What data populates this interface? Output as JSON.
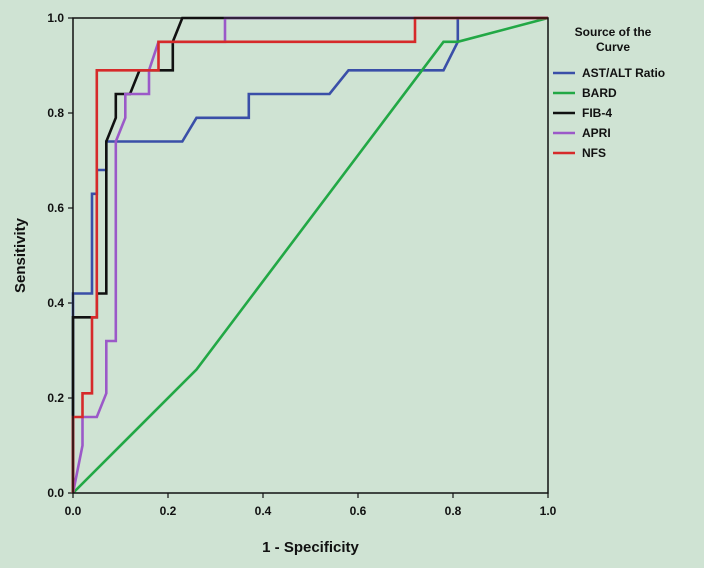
{
  "chart_data": {
    "type": "line",
    "title": "",
    "xlabel": "1 - Specificity",
    "ylabel": "Sensitivity",
    "xlim": [
      0,
      1
    ],
    "ylim": [
      0,
      1
    ],
    "xticks": [
      "0.0",
      "0.2",
      "0.4",
      "0.6",
      "0.8",
      "1.0"
    ],
    "yticks": [
      "0.0",
      "0.2",
      "0.4",
      "0.6",
      "0.8",
      "1.0"
    ],
    "grid": false,
    "legend": {
      "title_lines": [
        "Source of the",
        "Curve"
      ],
      "placement": "right"
    },
    "series": [
      {
        "name": "AST/ALT Ratio",
        "color": "#3a4fa8",
        "points": [
          [
            0,
            0
          ],
          [
            0,
            0.42
          ],
          [
            0.04,
            0.42
          ],
          [
            0.04,
            0.63
          ],
          [
            0.05,
            0.63
          ],
          [
            0.05,
            0.68
          ],
          [
            0.07,
            0.68
          ],
          [
            0.07,
            0.74
          ],
          [
            0.23,
            0.74
          ],
          [
            0.26,
            0.79
          ],
          [
            0.37,
            0.79
          ],
          [
            0.37,
            0.84
          ],
          [
            0.54,
            0.84
          ],
          [
            0.58,
            0.89
          ],
          [
            0.78,
            0.89
          ],
          [
            0.81,
            0.95
          ],
          [
            0.81,
            1.0
          ],
          [
            1.0,
            1.0
          ]
        ]
      },
      {
        "name": "BARD",
        "color": "#22a845",
        "points": [
          [
            0,
            0
          ],
          [
            0.26,
            0.26
          ],
          [
            0.78,
            0.95
          ],
          [
            0.81,
            0.95
          ],
          [
            1.0,
            1.0
          ]
        ]
      },
      {
        "name": "FIB-4",
        "color": "#111111",
        "points": [
          [
            0,
            0
          ],
          [
            0,
            0.37
          ],
          [
            0.05,
            0.37
          ],
          [
            0.05,
            0.42
          ],
          [
            0.07,
            0.42
          ],
          [
            0.07,
            0.74
          ],
          [
            0.09,
            0.79
          ],
          [
            0.09,
            0.84
          ],
          [
            0.12,
            0.84
          ],
          [
            0.14,
            0.89
          ],
          [
            0.21,
            0.89
          ],
          [
            0.21,
            0.95
          ],
          [
            0.23,
            1.0
          ],
          [
            1.0,
            1.0
          ]
        ]
      },
      {
        "name": "APRI",
        "color": "#9b59c8",
        "points": [
          [
            0,
            0
          ],
          [
            0.02,
            0.1
          ],
          [
            0.02,
            0.16
          ],
          [
            0.05,
            0.16
          ],
          [
            0.07,
            0.21
          ],
          [
            0.07,
            0.32
          ],
          [
            0.09,
            0.32
          ],
          [
            0.09,
            0.74
          ],
          [
            0.11,
            0.79
          ],
          [
            0.11,
            0.84
          ],
          [
            0.16,
            0.84
          ],
          [
            0.16,
            0.89
          ],
          [
            0.18,
            0.95
          ],
          [
            0.32,
            0.95
          ],
          [
            0.32,
            1.0
          ],
          [
            1.0,
            1.0
          ]
        ]
      },
      {
        "name": "NFS",
        "color": "#d62a2a",
        "points": [
          [
            0,
            0
          ],
          [
            0,
            0.16
          ],
          [
            0.02,
            0.16
          ],
          [
            0.02,
            0.21
          ],
          [
            0.04,
            0.21
          ],
          [
            0.04,
            0.37
          ],
          [
            0.05,
            0.37
          ],
          [
            0.05,
            0.89
          ],
          [
            0.18,
            0.89
          ],
          [
            0.18,
            0.95
          ],
          [
            0.72,
            0.95
          ],
          [
            0.72,
            1.0
          ],
          [
            1.0,
            1.0
          ]
        ]
      }
    ]
  }
}
